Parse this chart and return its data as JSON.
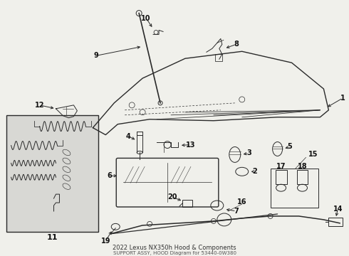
{
  "title": "2022 Lexus NX350h Hood & Components",
  "subtitle": "SUPPORT ASSY, HOOD Diagram for 53440-0W380",
  "bg_color": "#f0f0eb",
  "line_color": "#2a2a2a",
  "label_color": "#111111",
  "box_bg": "#dcdcd8",
  "fig_width": 4.9,
  "fig_height": 3.6,
  "dpi": 100
}
